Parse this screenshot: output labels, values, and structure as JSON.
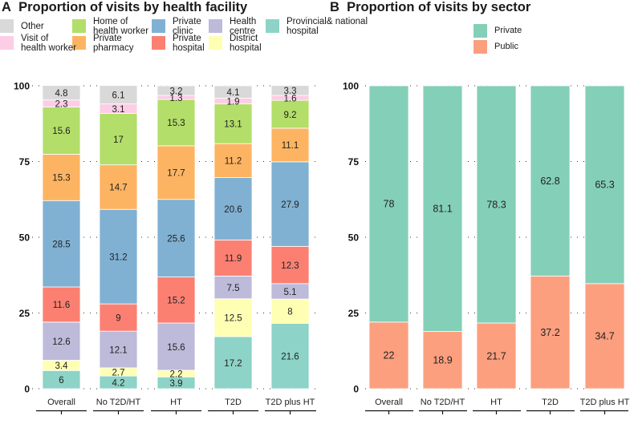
{
  "panel_a": {
    "letter": "A",
    "title": "Proportion of visits by health facility"
  },
  "panel_b": {
    "letter": "B",
    "title": "Proportion of visits by sector"
  },
  "chart_data": [
    {
      "type": "bar",
      "stacked": true,
      "title": "Proportion of visits by health facility",
      "xlabel": "",
      "ylabel": "",
      "ylim": [
        0,
        100
      ],
      "yticks": [
        0,
        25,
        50,
        75,
        100
      ],
      "grid": "horizontal dotted",
      "legend_position": "top-left",
      "categories": [
        "Overall",
        "No T2D/HT",
        "HT",
        "T2D",
        "T2D plus HT"
      ],
      "series": [
        {
          "name": "Provincial& national hospital",
          "legend_label": "Provincial& national\nhospital",
          "color": "#8dd3c7",
          "values": [
            6,
            4.2,
            3.9,
            17.2,
            21.6
          ]
        },
        {
          "name": "District hospital",
          "legend_label": "District\nhospital",
          "color": "#ffffb3",
          "values": [
            3.4,
            2.7,
            2.2,
            12.5,
            8
          ]
        },
        {
          "name": "Health centre",
          "legend_label": "Health\ncentre",
          "color": "#bebada",
          "values": [
            12.6,
            12.1,
            15.6,
            7.5,
            5.1
          ]
        },
        {
          "name": "Private hospital",
          "legend_label": "Private\nhospital",
          "color": "#fb8072",
          "values": [
            11.6,
            9,
            15.2,
            11.9,
            12.3
          ]
        },
        {
          "name": "Private clinic",
          "legend_label": "Private\nclinic",
          "color": "#80b1d3",
          "values": [
            28.5,
            31.2,
            25.6,
            20.6,
            27.9
          ]
        },
        {
          "name": "Private pharmacy",
          "legend_label": "Private\npharmacy",
          "color": "#fdb462",
          "values": [
            15.3,
            14.7,
            17.7,
            11.2,
            11.1
          ]
        },
        {
          "name": "Home of health worker",
          "legend_label": "Home of\nhealth worker",
          "color": "#b3de69",
          "values": [
            15.6,
            17,
            15.3,
            13.1,
            9.2
          ]
        },
        {
          "name": "Visit of health worker",
          "legend_label": "Visit of\nhealth worker",
          "color": "#fccde5",
          "values": [
            2.3,
            3.1,
            1.3,
            1.9,
            1.6
          ]
        },
        {
          "name": "Other",
          "legend_label": "Other",
          "color": "#d9d9d9",
          "values": [
            4.8,
            6.1,
            3.2,
            4.1,
            3.3
          ]
        }
      ]
    },
    {
      "type": "bar",
      "stacked": true,
      "title": "Proportion of visits by sector",
      "xlabel": "",
      "ylabel": "",
      "ylim": [
        0,
        100
      ],
      "yticks": [
        0,
        25,
        50,
        75,
        100
      ],
      "grid": "horizontal dotted",
      "legend_position": "top-right",
      "categories": [
        "Overall",
        "No T2D/HT",
        "HT",
        "T2D",
        "T2D plus HT"
      ],
      "series": [
        {
          "name": "Public",
          "legend_label": "Public",
          "color": "#fc9f7e",
          "values": [
            22,
            18.9,
            21.7,
            37.2,
            34.7
          ]
        },
        {
          "name": "Private",
          "legend_label": "Private",
          "color": "#84cfb8",
          "values": [
            78,
            81.1,
            78.3,
            62.8,
            65.3
          ]
        }
      ]
    }
  ]
}
